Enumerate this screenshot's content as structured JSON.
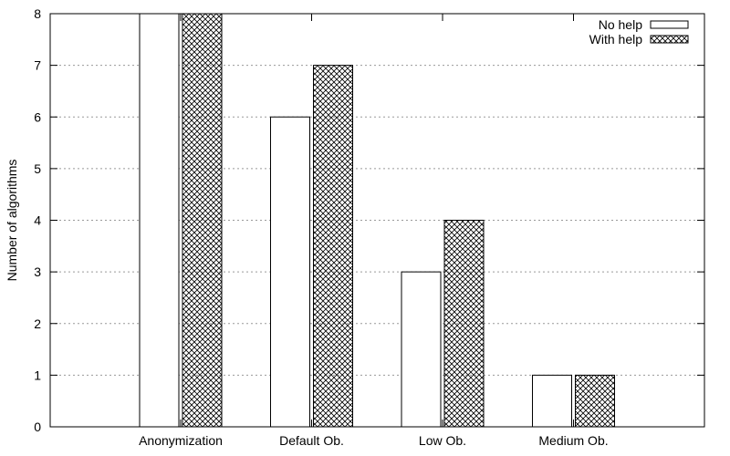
{
  "chart_data": {
    "type": "bar",
    "categories": [
      "Anonymization",
      "Default Ob.",
      "Low Ob.",
      "Medium Ob."
    ],
    "series": [
      {
        "name": "No help",
        "values": [
          8,
          6,
          3,
          1
        ],
        "pattern": "none"
      },
      {
        "name": "With help",
        "values": [
          8,
          7,
          4,
          1
        ],
        "pattern": "crosshatch"
      }
    ],
    "title": "",
    "xlabel": "",
    "ylabel": "Number of algorithms",
    "ylim": [
      0,
      8
    ],
    "yticks": [
      0,
      1,
      2,
      3,
      4,
      5,
      6,
      7,
      8
    ],
    "grid": "horizontal dotted",
    "legend_position": "top-right",
    "colors": {
      "bar_fill": "#ffffff",
      "bar_stroke": "#000000",
      "grid": "#999999",
      "hatch": "#000000"
    }
  }
}
